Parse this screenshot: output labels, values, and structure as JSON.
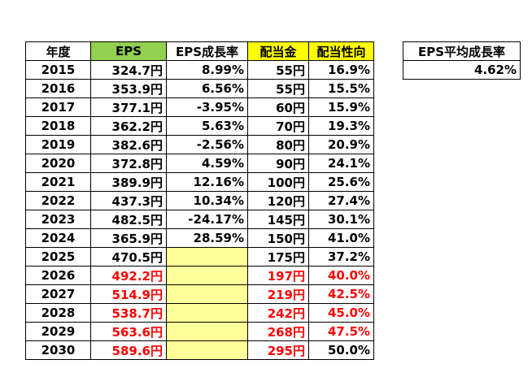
{
  "colors": {
    "eps_header": "#92d050",
    "highlight_header": "#ffff00",
    "forecast_fill": "#ffff99",
    "forecast_text": "#ff0000"
  },
  "main_table": {
    "headers": [
      "年度",
      "EPS",
      "EPS成長率",
      "配当金",
      "配当性向"
    ],
    "rows": [
      {
        "year": "2015",
        "eps": "324.7円",
        "growth": "8.99%",
        "dividend": "55円",
        "payout": "16.9%",
        "forecast": false
      },
      {
        "year": "2016",
        "eps": "353.9円",
        "growth": "6.56%",
        "dividend": "55円",
        "payout": "15.5%",
        "forecast": false
      },
      {
        "year": "2017",
        "eps": "377.1円",
        "growth": "-3.95%",
        "dividend": "60円",
        "payout": "15.9%",
        "forecast": false
      },
      {
        "year": "2018",
        "eps": "362.2円",
        "growth": "5.63%",
        "dividend": "70円",
        "payout": "19.3%",
        "forecast": false
      },
      {
        "year": "2019",
        "eps": "382.6円",
        "growth": "-2.56%",
        "dividend": "80円",
        "payout": "20.9%",
        "forecast": false
      },
      {
        "year": "2020",
        "eps": "372.8円",
        "growth": "4.59%",
        "dividend": "90円",
        "payout": "24.1%",
        "forecast": false
      },
      {
        "year": "2021",
        "eps": "389.9円",
        "growth": "12.16%",
        "dividend": "100円",
        "payout": "25.6%",
        "forecast": false
      },
      {
        "year": "2022",
        "eps": "437.3円",
        "growth": "10.34%",
        "dividend": "120円",
        "payout": "27.4%",
        "forecast": false
      },
      {
        "year": "2023",
        "eps": "482.5円",
        "growth": "-24.17%",
        "dividend": "145円",
        "payout": "30.1%",
        "forecast": false
      },
      {
        "year": "2024",
        "eps": "365.9円",
        "growth": "28.59%",
        "dividend": "150円",
        "payout": "41.0%",
        "forecast": false
      },
      {
        "year": "2025",
        "eps": "470.5円",
        "growth": "",
        "dividend": "175円",
        "payout": "37.2%",
        "forecast": false,
        "growth_blank": true
      },
      {
        "year": "2026",
        "eps": "492.2円",
        "growth": "",
        "dividend": "197円",
        "payout": "40.0%",
        "forecast": true
      },
      {
        "year": "2027",
        "eps": "514.9円",
        "growth": "",
        "dividend": "219円",
        "payout": "42.5%",
        "forecast": true
      },
      {
        "year": "2028",
        "eps": "538.7円",
        "growth": "",
        "dividend": "242円",
        "payout": "45.0%",
        "forecast": true
      },
      {
        "year": "2029",
        "eps": "563.6円",
        "growth": "",
        "dividend": "268円",
        "payout": "47.5%",
        "forecast": true
      },
      {
        "year": "2030",
        "eps": "589.6円",
        "growth": "",
        "dividend": "295円",
        "payout": "50.0%",
        "forecast": true,
        "payout_black": true
      }
    ]
  },
  "avg_table": {
    "header": "EPS平均成長率",
    "value": "4.62%"
  }
}
